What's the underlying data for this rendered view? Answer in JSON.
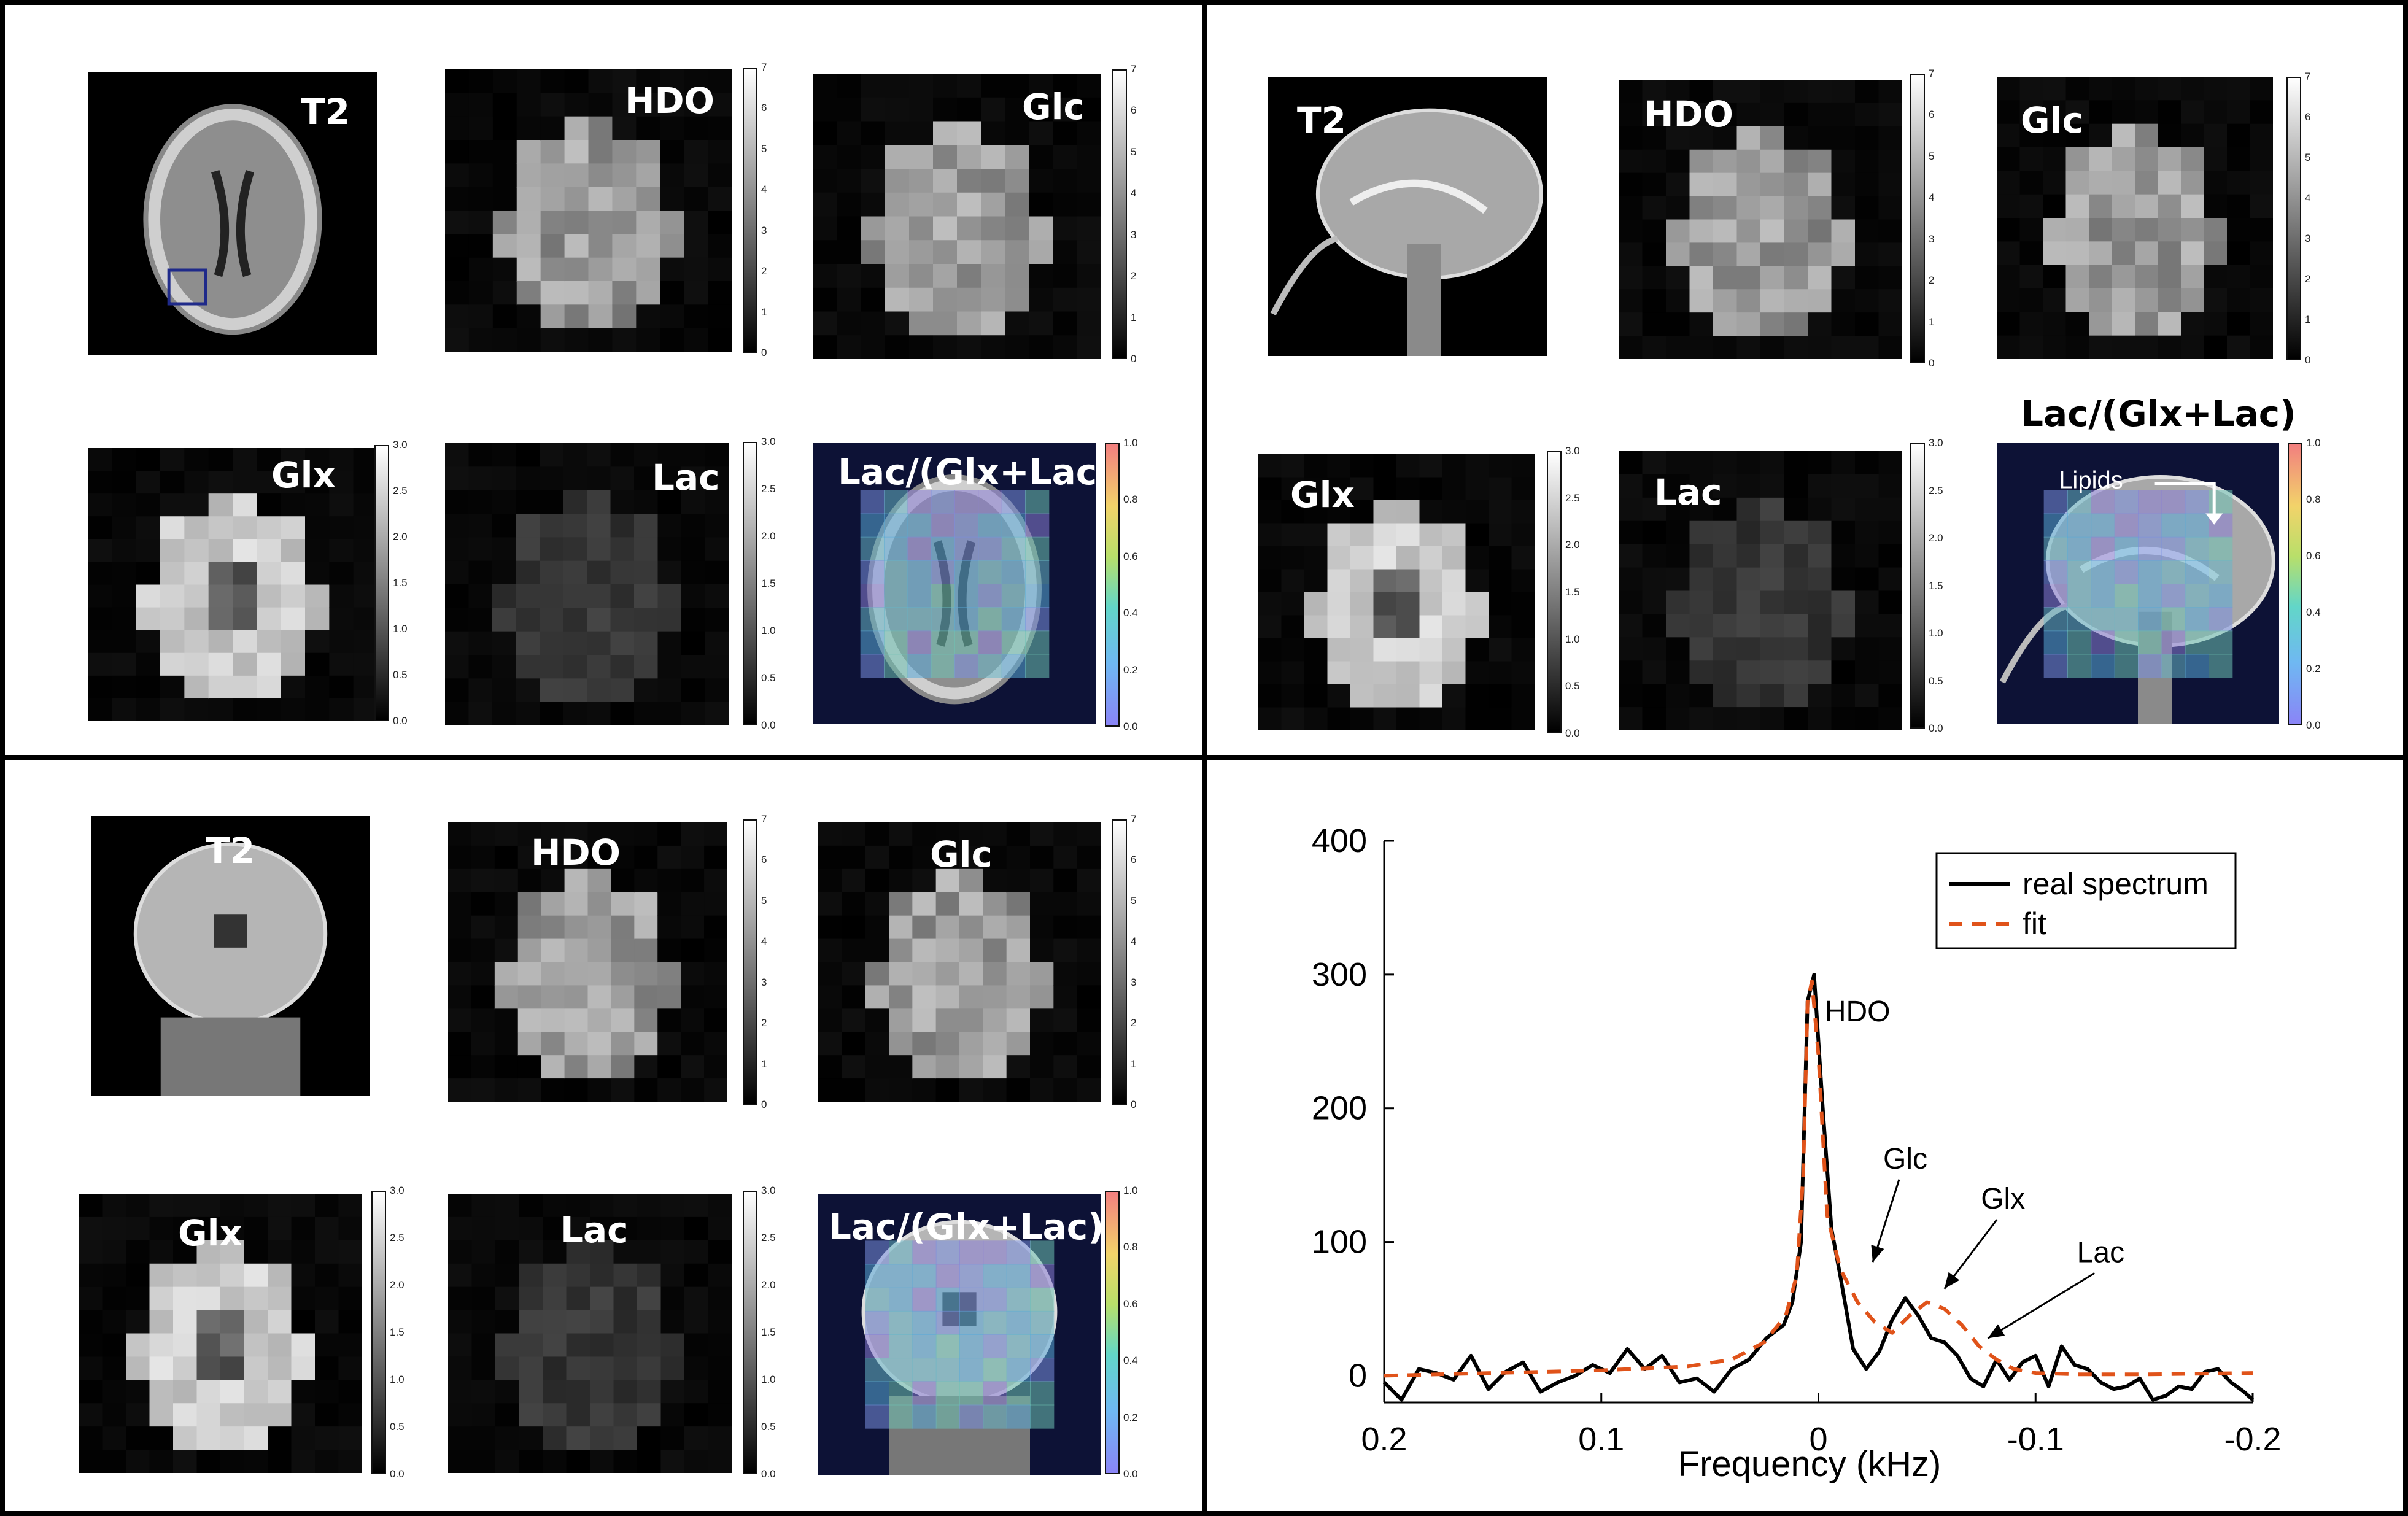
{
  "panels": [
    {
      "tiles": [
        {
          "label": "T2",
          "kind": "axial-t2"
        },
        {
          "label": "HDO",
          "kind": "blocky"
        },
        {
          "label": "Glc",
          "kind": "blocky"
        },
        {
          "label": "Glx",
          "kind": "blocky-ring"
        },
        {
          "label": "Lac",
          "kind": "blocky-dim"
        },
        {
          "label": "Lac/(Glx+Lac)",
          "kind": "overlay-axial"
        }
      ]
    },
    {
      "tiles": [
        {
          "label": "T2",
          "kind": "sagittal-t2"
        },
        {
          "label": "HDO",
          "kind": "blocky"
        },
        {
          "label": "Glc",
          "kind": "blocky"
        },
        {
          "label": "Glx",
          "kind": "blocky-ring"
        },
        {
          "label": "Lac",
          "kind": "blocky-dim"
        },
        {
          "label": "Lac/(Glx+Lac)",
          "kind": "overlay-sagittal",
          "annotation": "Lipids"
        }
      ]
    },
    {
      "tiles": [
        {
          "label": "T2",
          "kind": "coronal-t2"
        },
        {
          "label": "HDO",
          "kind": "blocky"
        },
        {
          "label": "Glc",
          "kind": "blocky"
        },
        {
          "label": "Glx",
          "kind": "blocky-ring"
        },
        {
          "label": "Lac",
          "kind": "blocky-dim"
        },
        {
          "label": "Lac/(Glx+Lac)",
          "kind": "overlay-coronal"
        }
      ]
    }
  ],
  "colorbars": {
    "hdo_glc": [
      "0",
      "1",
      "2",
      "3",
      "4",
      "5",
      "6",
      "7"
    ],
    "glx_lac": [
      "0.0",
      "0.5",
      "1.0",
      "1.5",
      "2.0",
      "2.5",
      "3.0"
    ],
    "ratio": [
      "0.0",
      "0.2",
      "0.4",
      "0.6",
      "0.8",
      "1.0"
    ]
  },
  "colors": {
    "real": "#000000",
    "fit": "#e0531a",
    "roi_box": "#1f2a8a"
  },
  "chart_data": {
    "type": "line",
    "xlabel": "Frequency (kHz)",
    "ylabel": "",
    "xlim": [
      0.2,
      -0.2
    ],
    "ylim": [
      -20,
      400
    ],
    "x_reversed": true,
    "xticks": [
      0.2,
      0.1,
      0,
      -0.1,
      -0.2
    ],
    "xtick_labels": [
      "0.2",
      "0.1",
      "0",
      "-0.1",
      "-0.2"
    ],
    "yticks": [
      0,
      100,
      200,
      300,
      400
    ],
    "ytick_labels": [
      "0",
      "100",
      "200",
      "300",
      "400"
    ],
    "legend": {
      "placement": "top-right",
      "entries": [
        "real spectrum",
        "fit"
      ]
    },
    "series": [
      {
        "name": "real spectrum",
        "style": "solid",
        "x": [
          0.2,
          0.192,
          0.184,
          0.176,
          0.168,
          0.16,
          0.152,
          0.144,
          0.136,
          0.128,
          0.12,
          0.112,
          0.104,
          0.096,
          0.088,
          0.08,
          0.072,
          0.064,
          0.056,
          0.048,
          0.04,
          0.032,
          0.024,
          0.016,
          0.012,
          0.008,
          0.005,
          0.002,
          -0.002,
          -0.006,
          -0.01,
          -0.016,
          -0.022,
          -0.028,
          -0.034,
          -0.04,
          -0.046,
          -0.052,
          -0.058,
          -0.064,
          -0.07,
          -0.076,
          -0.082,
          -0.088,
          -0.094,
          -0.1,
          -0.106,
          -0.112,
          -0.118,
          -0.124,
          -0.13,
          -0.136,
          -0.142,
          -0.148,
          -0.154,
          -0.16,
          -0.166,
          -0.172,
          -0.178,
          -0.184,
          -0.19,
          -0.196,
          -0.2
        ],
        "values": [
          -5,
          -18,
          5,
          2,
          -3,
          15,
          -10,
          3,
          10,
          -12,
          -5,
          0,
          8,
          2,
          20,
          5,
          15,
          -5,
          -2,
          -12,
          5,
          12,
          28,
          38,
          55,
          100,
          280,
          300,
          200,
          110,
          75,
          20,
          5,
          18,
          42,
          58,
          45,
          28,
          25,
          15,
          -2,
          -8,
          12,
          -3,
          10,
          15,
          -8,
          22,
          8,
          5,
          -5,
          -10,
          -8,
          -2,
          -18,
          -15,
          -8,
          -10,
          3,
          5,
          -5,
          -12,
          -18
        ]
      },
      {
        "name": "fit",
        "style": "dashed",
        "x": [
          0.2,
          0.15,
          0.1,
          0.06,
          0.04,
          0.025,
          0.015,
          0.01,
          0.007,
          0.005,
          0.003,
          0.0,
          -0.004,
          -0.01,
          -0.018,
          -0.026,
          -0.034,
          -0.042,
          -0.05,
          -0.058,
          -0.066,
          -0.074,
          -0.082,
          -0.09,
          -0.1,
          -0.12,
          -0.15,
          -0.2
        ],
        "values": [
          0,
          2,
          4,
          7,
          12,
          25,
          45,
          75,
          150,
          280,
          295,
          240,
          120,
          80,
          55,
          40,
          32,
          45,
          55,
          50,
          38,
          22,
          12,
          5,
          2,
          1,
          1,
          2
        ]
      }
    ],
    "annotations": [
      {
        "text": "HDO",
        "x": -0.018,
        "y": 265
      },
      {
        "text": "Glc",
        "x": -0.04,
        "y": 155,
        "arrow_to": [
          -0.025,
          85
        ]
      },
      {
        "text": "Glx",
        "x": -0.085,
        "y": 125,
        "arrow_to": [
          -0.058,
          65
        ]
      },
      {
        "text": "Lac",
        "x": -0.13,
        "y": 85,
        "arrow_to": [
          -0.078,
          28
        ]
      }
    ]
  }
}
